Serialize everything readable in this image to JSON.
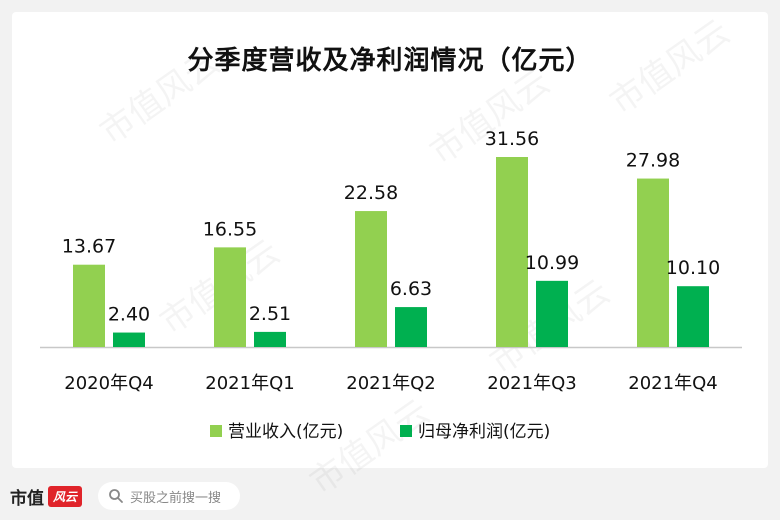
{
  "chart_data": {
    "type": "bar",
    "title": "分季度营收及净利润情况（亿元）",
    "categories": [
      "2020年Q4",
      "2021年Q1",
      "2021年Q2",
      "2021年Q3",
      "2021年Q4"
    ],
    "series": [
      {
        "name": "营业收入(亿元)",
        "values": [
          13.67,
          16.55,
          22.58,
          31.56,
          27.98
        ],
        "labels": [
          "13.67",
          "16.55",
          "22.58",
          "31.56",
          "27.98"
        ],
        "color": "#92d050"
      },
      {
        "name": "归母净利润(亿元)",
        "values": [
          2.4,
          2.51,
          6.63,
          10.99,
          10.1
        ],
        "labels": [
          "2.40",
          "2.51",
          "6.63",
          "10.99",
          "10.10"
        ],
        "color": "#00b050"
      }
    ],
    "ylim": [
      0,
      32
    ],
    "grid": false,
    "legend_position": "bottom"
  },
  "footer": {
    "brand": "市值",
    "brand_mark": "风云",
    "search_placeholder": "买股之前搜一搜"
  },
  "watermark": {
    "text": "市值风云"
  }
}
